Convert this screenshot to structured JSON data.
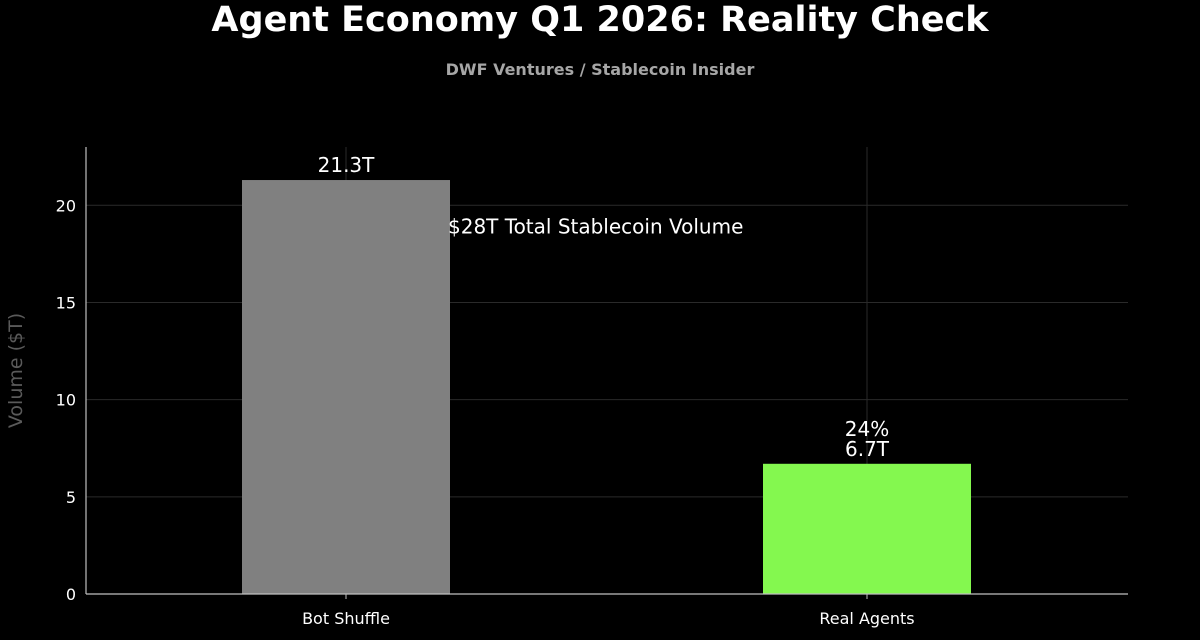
{
  "chart_data": {
    "type": "bar",
    "title": "Agent Economy Q1 2026: Reality Check",
    "subtitle": "DWF Ventures / Stablecoin Insider",
    "xlabel": "",
    "ylabel": "Volume ($T)",
    "categories": [
      "Bot Shuffle",
      "Real Agents"
    ],
    "values": [
      21.3,
      6.7
    ],
    "value_labels": [
      "21.3T",
      "6.7T"
    ],
    "bar_colors": [
      "#808080",
      "#84f84f"
    ],
    "ylim": [
      0,
      23
    ],
    "yticks": [
      0,
      5,
      10,
      15,
      20
    ],
    "grid": true,
    "annotations": [
      {
        "text": "$28T Total Stablecoin Volume",
        "category": "Bot Shuffle",
        "y": 18.9
      },
      {
        "text": "24%",
        "category": "Real Agents",
        "y": 8.5
      }
    ]
  },
  "style": {
    "background": "#000000",
    "grid_color": "#2a2a2a",
    "axis_color": "#bfbfbf",
    "title_color": "#ffffff",
    "subtitle_color": "#a6a6a6",
    "ylabel_color": "#5a5a5a"
  }
}
